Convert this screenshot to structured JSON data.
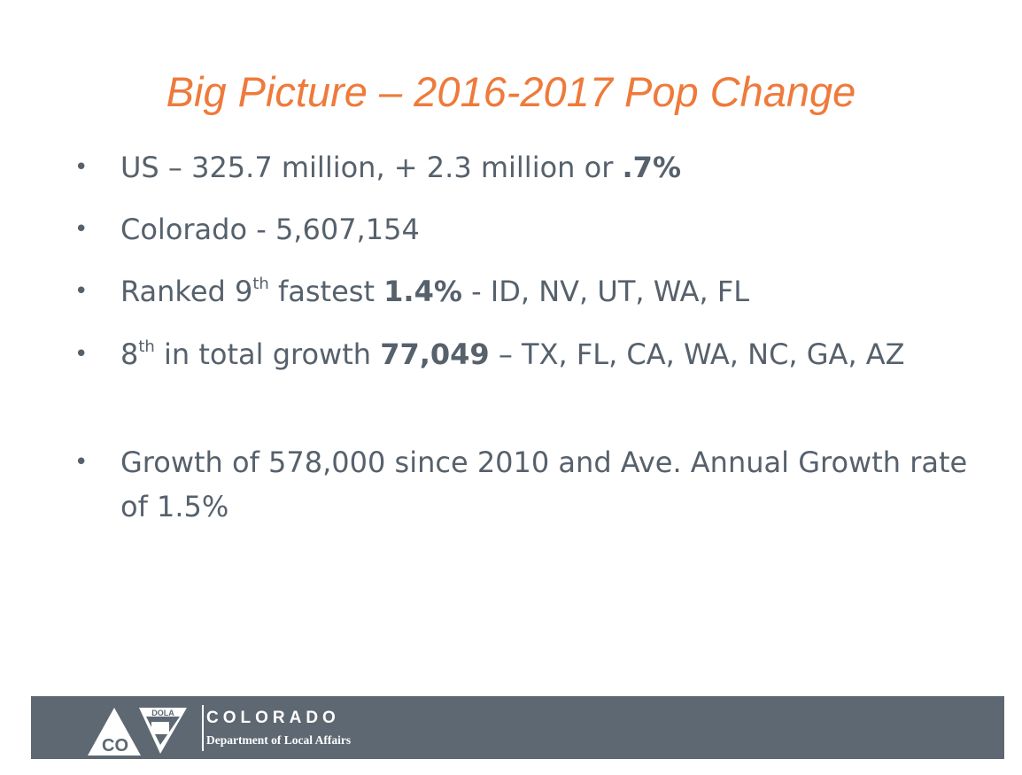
{
  "slide": {
    "title": "Big Picture – 2016-2017 Pop Change",
    "bullets": [
      {
        "part1": "US – 325.7 million, + 2.3 million or ",
        "bold": ".7%"
      },
      {
        "text": "Colorado - 5,607,154"
      },
      {
        "part1": "Ranked 9",
        "sup": "th",
        "part2": " fastest ",
        "bold": "1.4%",
        "part3": " - ID, NV, UT, WA, FL"
      },
      {
        "part1": "8",
        "sup": "th",
        "part2": " in total growth ",
        "bold": "77,049",
        "part3": " – TX, FL, CA, WA, NC, GA, AZ"
      },
      {
        "text": "Growth of 578,000 since 2010 and Ave. Annual Growth rate of 1.5%"
      }
    ],
    "bullet_symbol": "•"
  },
  "footer": {
    "logo_top_text": "DOLA",
    "logo_letters": "CO",
    "org_name": "COLORADO",
    "department": "Department of Local Affairs"
  },
  "colors": {
    "title": "#EE7A3B",
    "body_text": "#56616C",
    "footer_bg": "#5E6872"
  }
}
